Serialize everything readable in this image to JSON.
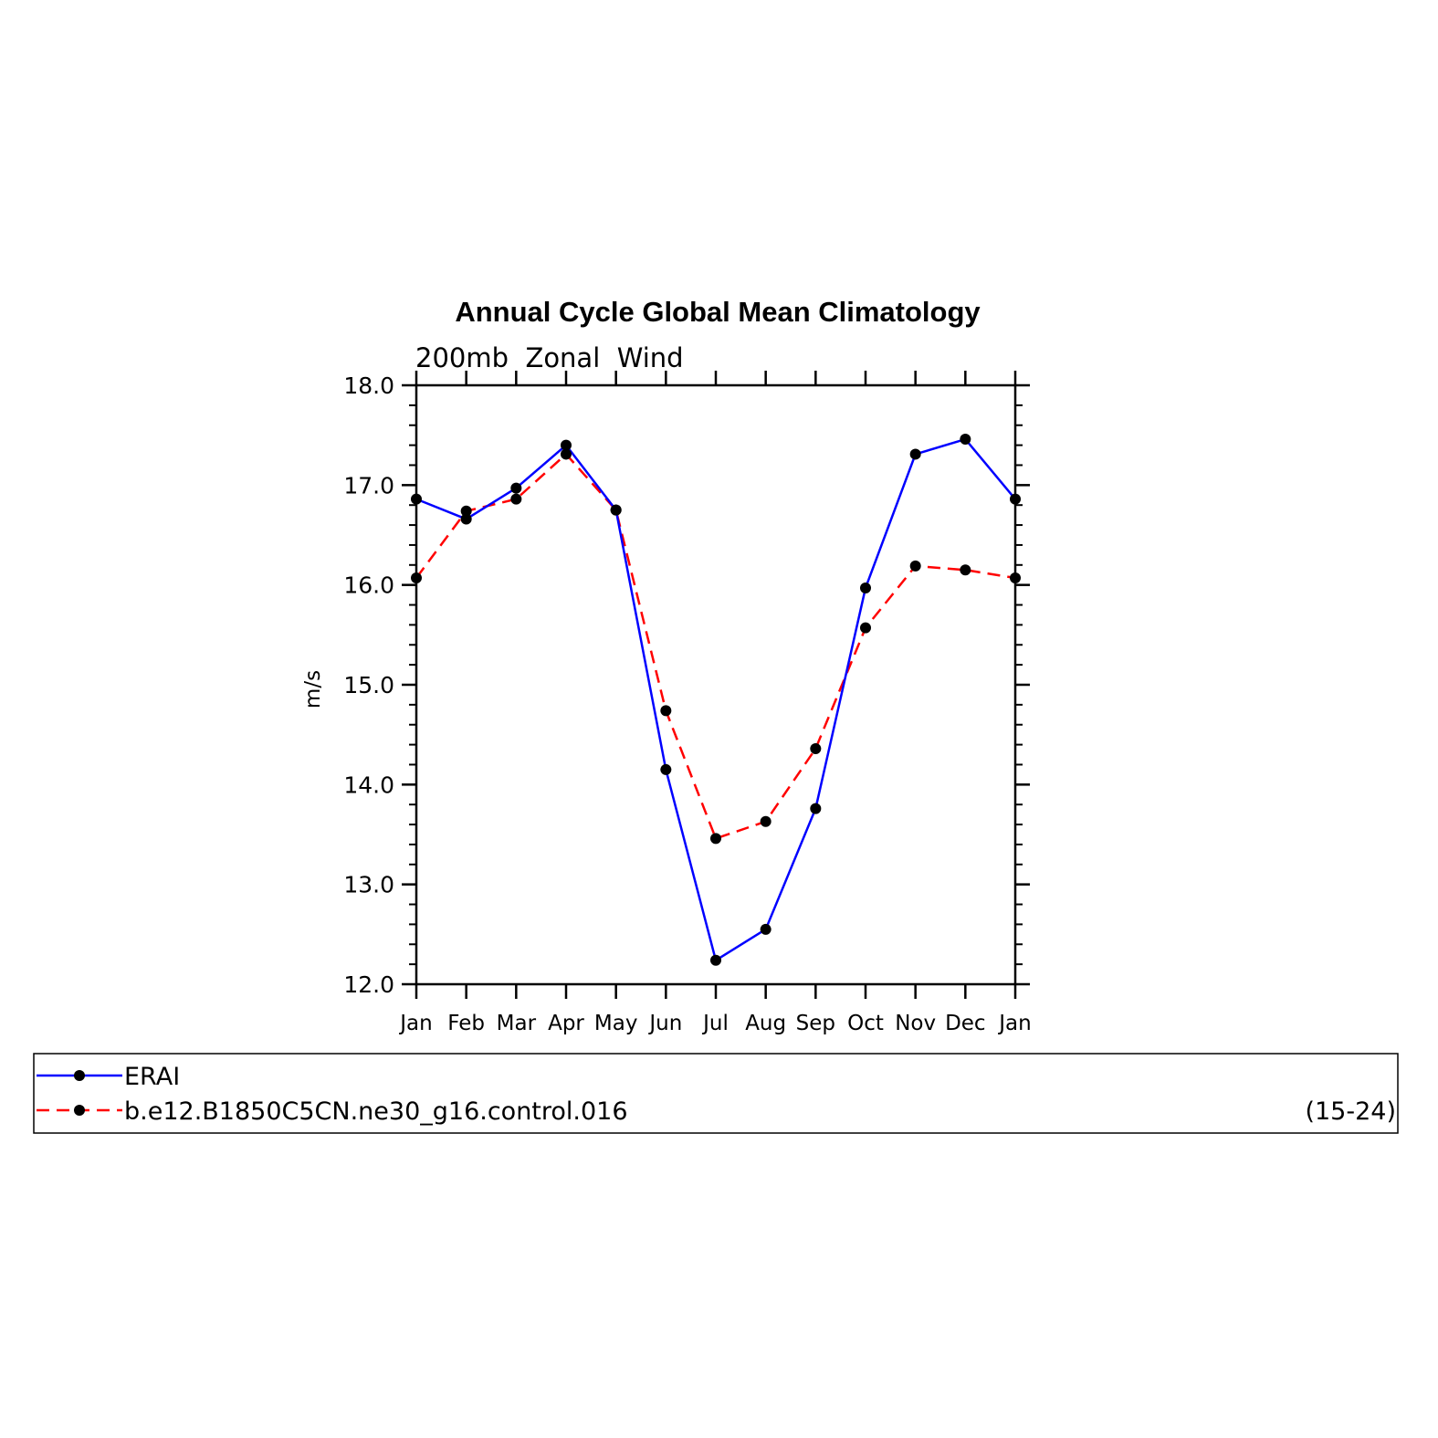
{
  "chart_data": {
    "type": "line",
    "title": "Annual Cycle Global Mean Climatology",
    "subtitle": "200mb  Zonal  Wind",
    "ylabel": "m/s",
    "xlabel": "",
    "ylim": [
      12.0,
      18.0
    ],
    "yticks": [
      "12.0",
      "13.0",
      "14.0",
      "15.0",
      "16.0",
      "17.0",
      "18.0"
    ],
    "categories": [
      "Jan",
      "Feb",
      "Mar",
      "Apr",
      "May",
      "Jun",
      "Jul",
      "Aug",
      "Sep",
      "Oct",
      "Nov",
      "Dec",
      "Jan"
    ],
    "grid": false,
    "legend_position": "bottom",
    "series": [
      {
        "name": "ERAI",
        "color": "#0000ff",
        "style": "solid",
        "marker": "filled-circle",
        "values": [
          16.86,
          16.66,
          16.97,
          17.4,
          16.75,
          14.15,
          12.24,
          12.55,
          13.76,
          15.97,
          17.31,
          17.46,
          16.86
        ]
      },
      {
        "name": "b.e12.B1850C5CN.ne30_g16.control.016",
        "color": "#ff0000",
        "style": "dashed",
        "marker": "filled-circle",
        "values": [
          16.07,
          16.74,
          16.86,
          17.31,
          16.75,
          14.74,
          13.46,
          13.63,
          14.36,
          15.57,
          16.19,
          16.15,
          16.07
        ]
      }
    ],
    "legend_note": "(15-24)"
  }
}
